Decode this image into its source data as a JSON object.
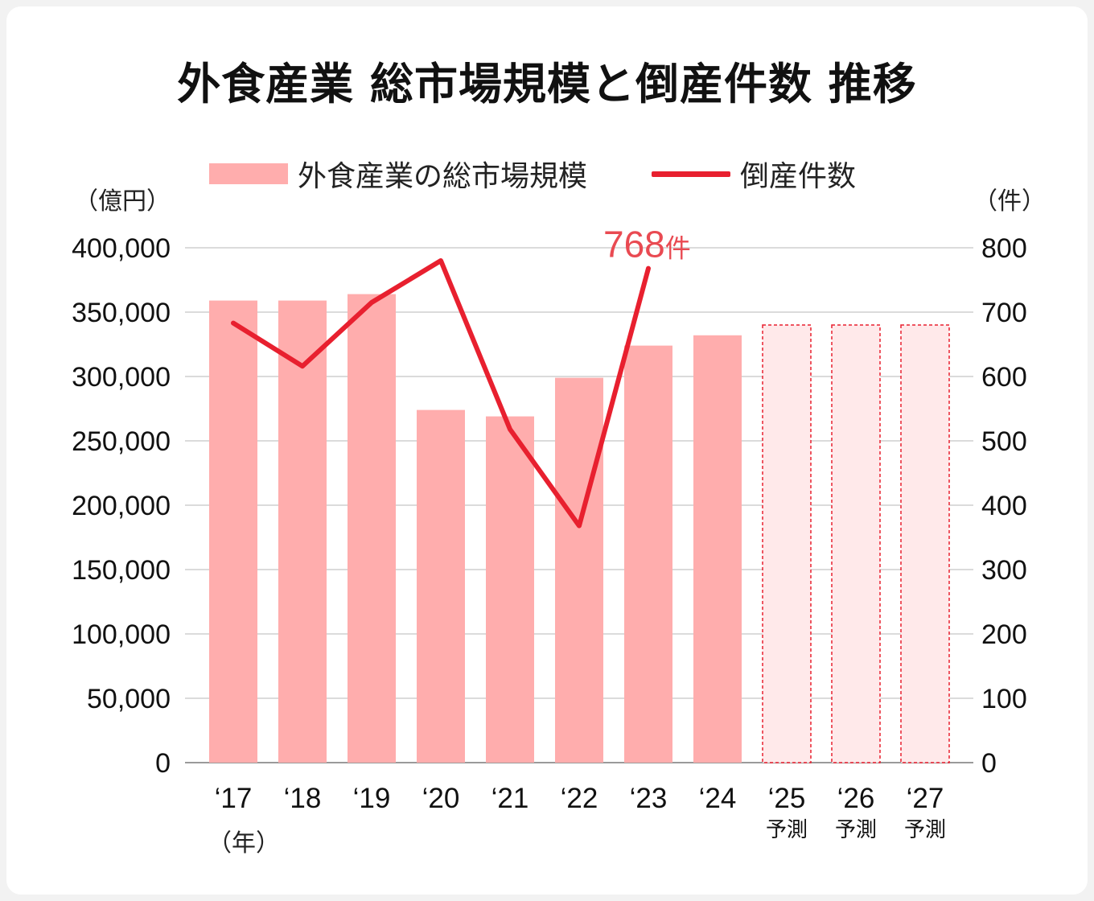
{
  "title": "外食産業 総市場規模と倒産件数 推移",
  "legend": {
    "bars": "外食産業の総市場規模",
    "line": "倒産件数"
  },
  "units": {
    "left": "（億円）",
    "right": "（件）",
    "x": "（年）"
  },
  "annotation": {
    "value": "768",
    "unit": "件"
  },
  "colors": {
    "bar": "#ffadad",
    "forecast_fill": "#ffe9ea",
    "forecast_border": "#e8202f",
    "line": "#e8202f",
    "annotation": "#e94a52"
  },
  "chart_data": {
    "type": "bar",
    "title": "外食産業 総市場規模と倒産件数 推移",
    "categories": [
      "‘17",
      "‘18",
      "‘19",
      "‘20",
      "‘21",
      "‘22",
      "‘23",
      "‘24",
      "‘25",
      "‘26",
      "‘27"
    ],
    "forecast_label": "予測",
    "forecast_flags": [
      false,
      false,
      false,
      false,
      false,
      false,
      false,
      false,
      true,
      true,
      true
    ],
    "series": [
      {
        "name": "外食産業の総市場規模",
        "type": "bar",
        "axis": "left",
        "values": [
          359000,
          359000,
          364000,
          274000,
          269000,
          299000,
          324000,
          332000,
          340000,
          340000,
          340000
        ]
      },
      {
        "name": "倒産件数",
        "type": "line",
        "axis": "right",
        "values": [
          683,
          616,
          715,
          780,
          518,
          368,
          768,
          null,
          null,
          null,
          null
        ]
      }
    ],
    "y_left": {
      "label": "（億円）",
      "min": 0,
      "max": 400000,
      "step": 50000,
      "ticks": [
        "0",
        "50,000",
        "100,000",
        "150,000",
        "200,000",
        "250,000",
        "300,000",
        "350,000",
        "400,000"
      ]
    },
    "y_right": {
      "label": "（件）",
      "min": 0,
      "max": 800,
      "step": 100,
      "ticks": [
        "0",
        "100",
        "200",
        "300",
        "400",
        "500",
        "600",
        "700",
        "800"
      ]
    },
    "xlabel": "（年）",
    "grid": true,
    "legend_position": "top"
  }
}
